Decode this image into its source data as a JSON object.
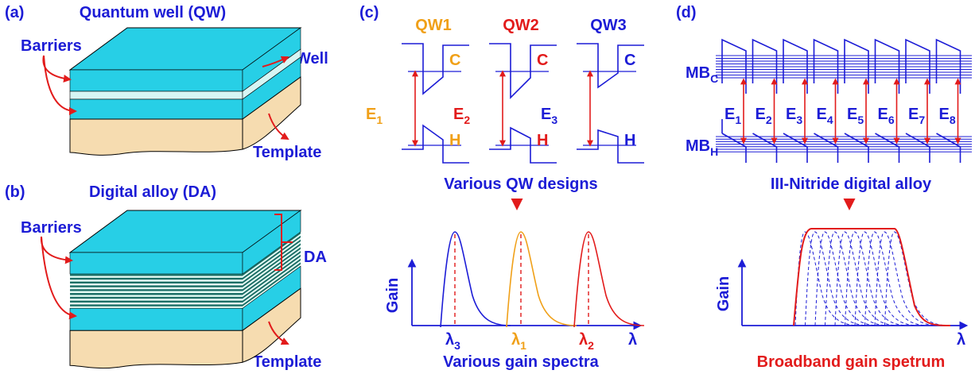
{
  "panels": [
    {
      "label": "(a)",
      "title": "Quantum well (QW)",
      "annotations": [
        "Barriers",
        "Well",
        "Template"
      ]
    },
    {
      "label": "(b)",
      "title": "Digital alloy (DA)",
      "annotations": [
        "Barriers",
        "DA",
        "Template"
      ]
    },
    {
      "label": "(c)",
      "wells": [
        "QW1",
        "QW2",
        "QW3"
      ],
      "conduction_labels": [
        "C",
        "C",
        "C"
      ],
      "valence_labels": [
        "H",
        "H",
        "H"
      ],
      "transitions": [
        {
          "symbol": "E",
          "sub": "1"
        },
        {
          "symbol": "E",
          "sub": "2"
        },
        {
          "symbol": "E",
          "sub": "3"
        }
      ],
      "caption_top": "Various QW designs",
      "y_axis": "Gain",
      "peaks": [
        {
          "symbol": "λ",
          "sub": "3"
        },
        {
          "symbol": "λ",
          "sub": "1"
        },
        {
          "symbol": "λ",
          "sub": "2"
        }
      ],
      "x_axis": "λ",
      "caption_bottom": "Various gain spectra"
    },
    {
      "label": "(d)",
      "minibands": [
        {
          "symbol": "MB",
          "sub": "C"
        },
        {
          "symbol": "MB",
          "sub": "H"
        }
      ],
      "transitions": [
        {
          "symbol": "E",
          "sub": "1"
        },
        {
          "symbol": "E",
          "sub": "2"
        },
        {
          "symbol": "E",
          "sub": "3"
        },
        {
          "symbol": "E",
          "sub": "4"
        },
        {
          "symbol": "E",
          "sub": "5"
        },
        {
          "symbol": "E",
          "sub": "6"
        },
        {
          "symbol": "E",
          "sub": "7"
        },
        {
          "symbol": "E",
          "sub": "8"
        }
      ],
      "caption_top": "III-Nitride digital alloy",
      "y_axis": "Gain",
      "x_axis": "λ",
      "caption_bottom": "Broadband gain spetrum"
    }
  ]
}
